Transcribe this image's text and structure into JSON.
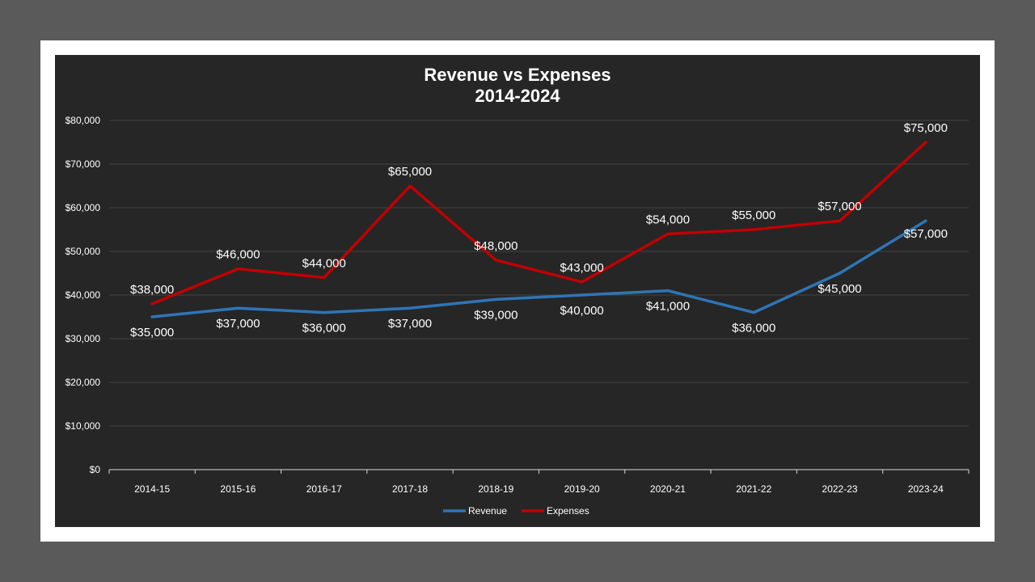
{
  "chart_data": {
    "type": "line",
    "title": "Revenue vs Expenses",
    "subtitle": "2014-2024",
    "categories": [
      "2014-15",
      "2015-16",
      "2016-17",
      "2017-18",
      "2018-19",
      "2019-20",
      "2020-21",
      "2021-22",
      "2022-23",
      "2023-24"
    ],
    "series": [
      {
        "name": "Revenue",
        "color": "#2e75b6",
        "values": [
          35000,
          37000,
          36000,
          37000,
          39000,
          40000,
          41000,
          36000,
          45000,
          57000
        ],
        "labels": [
          "$35,000",
          "$37,000",
          "$36,000",
          "$37,000",
          "$39,000",
          "$40,000",
          "$41,000",
          "$36,000",
          "$45,000",
          "$57,000"
        ]
      },
      {
        "name": "Expenses",
        "color": "#c00000",
        "values": [
          38000,
          46000,
          44000,
          65000,
          48000,
          43000,
          54000,
          55000,
          57000,
          75000
        ],
        "labels": [
          "$38,000",
          "$46,000",
          "$44,000",
          "$65,000",
          "$48,000",
          "$43,000",
          "$54,000",
          "$55,000",
          "$57,000",
          "$75,000"
        ]
      }
    ],
    "ylim": [
      0,
      80000
    ],
    "yticks": [
      0,
      10000,
      20000,
      30000,
      40000,
      50000,
      60000,
      70000,
      80000
    ],
    "ytick_labels": [
      "$0",
      "$10,000",
      "$20,000",
      "$30,000",
      "$40,000",
      "$50,000",
      "$60,000",
      "$70,000",
      "$80,000"
    ],
    "grid": true,
    "legend_position": "bottom"
  }
}
